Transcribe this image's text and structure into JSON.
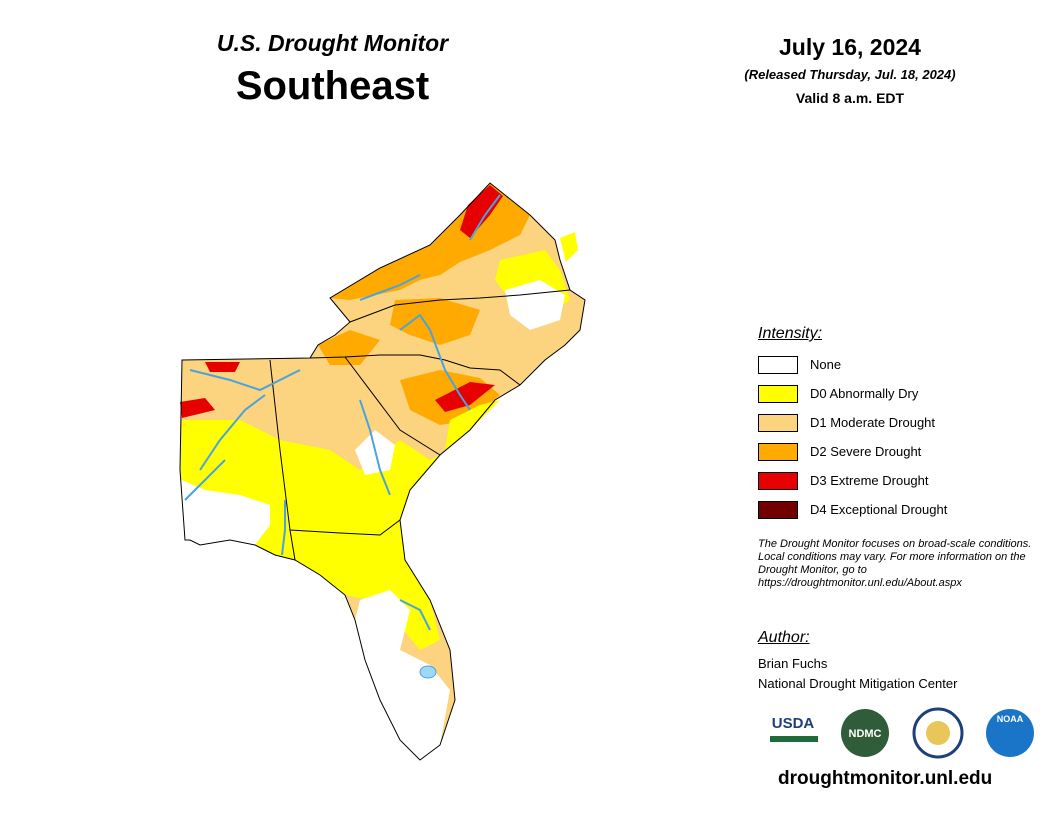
{
  "header": {
    "title": "U.S. Drought Monitor",
    "region": "Southeast"
  },
  "date": {
    "date": "July 16, 2024",
    "released": "(Released Thursday, Jul. 18, 2024)",
    "valid": "Valid 8 a.m. EDT"
  },
  "legend": {
    "title": "Intensity:",
    "items": [
      {
        "label": "None",
        "color": "#ffffff"
      },
      {
        "label": "D0 Abnormally Dry",
        "color": "#ffff00"
      },
      {
        "label": "D1 Moderate Drought",
        "color": "#fcd37f"
      },
      {
        "label": "D2 Severe Drought",
        "color": "#ffaa00"
      },
      {
        "label": "D3 Extreme Drought",
        "color": "#e60000"
      },
      {
        "label": "D4 Exceptional Drought",
        "color": "#730000"
      }
    ]
  },
  "note": "The Drought Monitor focuses on broad-scale conditions. Local conditions may vary. For more information on the Drought Monitor, go to https://droughtmonitor.unl.edu/About.aspx",
  "author": {
    "title": "Author:",
    "name": "Brian Fuchs",
    "org": "National Drought Mitigation Center"
  },
  "logos": [
    "USDA",
    "NDMC",
    "NOAA"
  ],
  "url": "droughtmonitor.unl.edu"
}
